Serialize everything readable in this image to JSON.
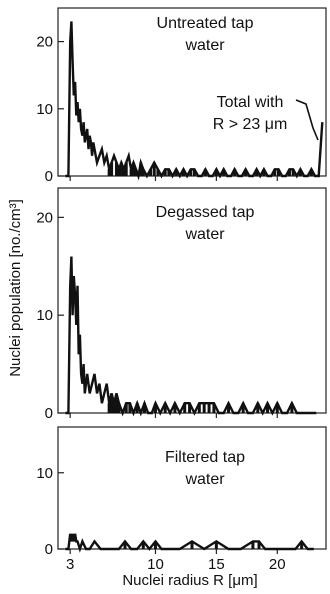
{
  "figure": {
    "ylabel": "Nuclei population [no./cm³]",
    "xlabel": "Nuclei radius R [μm]"
  },
  "chart_data": [
    {
      "type": "line",
      "title": [
        "Untreated tap",
        "water"
      ],
      "annotation": [
        "Total with",
        "R > 23 μm"
      ],
      "xlim": [
        2,
        24
      ],
      "ylim": [
        0,
        25
      ],
      "yticks": [
        0,
        10,
        20
      ],
      "xticks": [
        3,
        10,
        15,
        20
      ],
      "series": [
        {
          "x": [
            2.6,
            2.85,
            3.0,
            3.1,
            3.2,
            3.3,
            3.4,
            3.5,
            3.6,
            3.7,
            3.8,
            3.9,
            4.0,
            4.1,
            4.2,
            4.3,
            4.4,
            4.5,
            4.6,
            4.7,
            4.8,
            4.9,
            5.0,
            5.2,
            5.4,
            5.6,
            5.8,
            6.0,
            6.2,
            6.4,
            6.6,
            6.8,
            7.0,
            7.2,
            7.4,
            7.6,
            7.8,
            8.0,
            8.2,
            8.4,
            8.6,
            8.8,
            9.0,
            9.3,
            9.6,
            9.9,
            10.2,
            10.5,
            10.8,
            11.1,
            11.4,
            11.7,
            12.0,
            12.3,
            12.6,
            12.9,
            13.2,
            13.5,
            13.8,
            14.1,
            14.4,
            14.7,
            15.0,
            15.3,
            15.6,
            15.9,
            16.2,
            16.5,
            16.8,
            17.1,
            17.4,
            17.7,
            18.0,
            18.3,
            18.6,
            18.9,
            19.2,
            19.5,
            19.8,
            20.1,
            20.4,
            20.7,
            21.0,
            21.3,
            21.6,
            21.9,
            22.2,
            22.5,
            22.8,
            23.1,
            23.4,
            23.7
          ],
          "y": [
            0,
            0,
            20,
            23,
            17,
            12,
            14,
            9,
            11,
            8,
            10,
            7,
            6,
            8,
            5,
            6,
            7,
            4,
            6,
            5,
            3,
            5,
            4,
            2,
            3,
            4,
            2,
            3,
            1,
            2,
            3,
            2,
            1,
            2,
            1,
            2,
            3,
            1,
            2,
            1,
            0,
            2,
            1,
            0,
            1,
            2,
            1,
            0,
            1,
            1,
            0,
            1,
            0,
            1,
            0,
            1,
            1,
            0,
            0,
            1,
            0,
            0,
            1,
            0,
            1,
            0,
            0,
            1,
            0,
            0,
            1,
            0,
            0,
            1,
            0,
            1,
            0,
            0,
            1,
            1,
            0,
            0,
            1,
            1,
            0,
            1,
            0,
            0,
            1,
            0,
            0,
            8
          ]
        }
      ]
    },
    {
      "type": "line",
      "title": [
        "Degassed tap",
        "water"
      ],
      "xlim": [
        2,
        24
      ],
      "ylim": [
        0,
        23
      ],
      "yticks": [
        0,
        10,
        20
      ],
      "xticks": [
        3,
        10,
        15,
        20
      ],
      "series": [
        {
          "x": [
            2.6,
            2.85,
            3.0,
            3.1,
            3.2,
            3.3,
            3.4,
            3.5,
            3.6,
            3.7,
            3.8,
            3.9,
            4.0,
            4.1,
            4.2,
            4.3,
            4.4,
            4.6,
            4.8,
            5.0,
            5.2,
            5.4,
            5.6,
            5.8,
            6.0,
            6.2,
            6.4,
            6.6,
            6.8,
            7.0,
            7.3,
            7.6,
            7.9,
            8.2,
            8.5,
            8.8,
            9.1,
            9.4,
            9.7,
            10.0,
            10.4,
            10.8,
            11.2,
            11.6,
            12.0,
            12.4,
            12.8,
            13.2,
            13.6,
            14.0,
            14.4,
            14.8,
            15.2,
            15.6,
            16.0,
            16.4,
            16.8,
            17.2,
            17.6,
            18.0,
            18.4,
            18.8,
            19.2,
            19.6,
            20.0,
            20.4,
            20.8,
            21.2,
            21.6,
            22.0,
            22.4,
            22.8,
            23.2
          ],
          "y": [
            0,
            0,
            13,
            16,
            10,
            14,
            12,
            9,
            13,
            6,
            8,
            4,
            3,
            5,
            2,
            3,
            4,
            2,
            3,
            4,
            2,
            3,
            1,
            2,
            3,
            1,
            2,
            1,
            2,
            1,
            0,
            1,
            1,
            0,
            1,
            0,
            1,
            0,
            0,
            1,
            0,
            1,
            0,
            1,
            0,
            1,
            1,
            0,
            1,
            1,
            1,
            1,
            0,
            0,
            1,
            0,
            0,
            1,
            0,
            0,
            1,
            0,
            1,
            0,
            1,
            0,
            0,
            1,
            0,
            0,
            0,
            0,
            0
          ]
        }
      ]
    },
    {
      "type": "line",
      "title": [
        "Filtered tap",
        "water"
      ],
      "xlim": [
        2,
        24
      ],
      "ylim": [
        0,
        16
      ],
      "yticks": [
        0,
        10
      ],
      "xticks": [
        3,
        10,
        15,
        20
      ],
      "xtick_labels": [
        "3",
        "10",
        "15",
        "20"
      ],
      "series": [
        {
          "x": [
            2.6,
            2.85,
            3.0,
            3.1,
            3.2,
            3.3,
            3.4,
            3.5,
            3.6,
            3.8,
            4.0,
            4.3,
            4.6,
            5.0,
            5.5,
            6.0,
            6.5,
            7.0,
            7.5,
            8.0,
            8.5,
            9.0,
            9.5,
            10.0,
            10.5,
            11.0,
            12.0,
            13.0,
            14.0,
            15.0,
            16.0,
            17.0,
            18.0,
            18.5,
            19.0,
            20.0,
            21.0,
            21.5,
            22.0,
            22.5,
            23.0
          ],
          "y": [
            0,
            0,
            2,
            1,
            2,
            1,
            2,
            1,
            1,
            0,
            1,
            0,
            0,
            1,
            0,
            0,
            0,
            0,
            1,
            0,
            0,
            1,
            0,
            1,
            0,
            0,
            0,
            1,
            0,
            1,
            0,
            0,
            1,
            1,
            0,
            0,
            0,
            0,
            1,
            0,
            0
          ]
        }
      ]
    }
  ]
}
